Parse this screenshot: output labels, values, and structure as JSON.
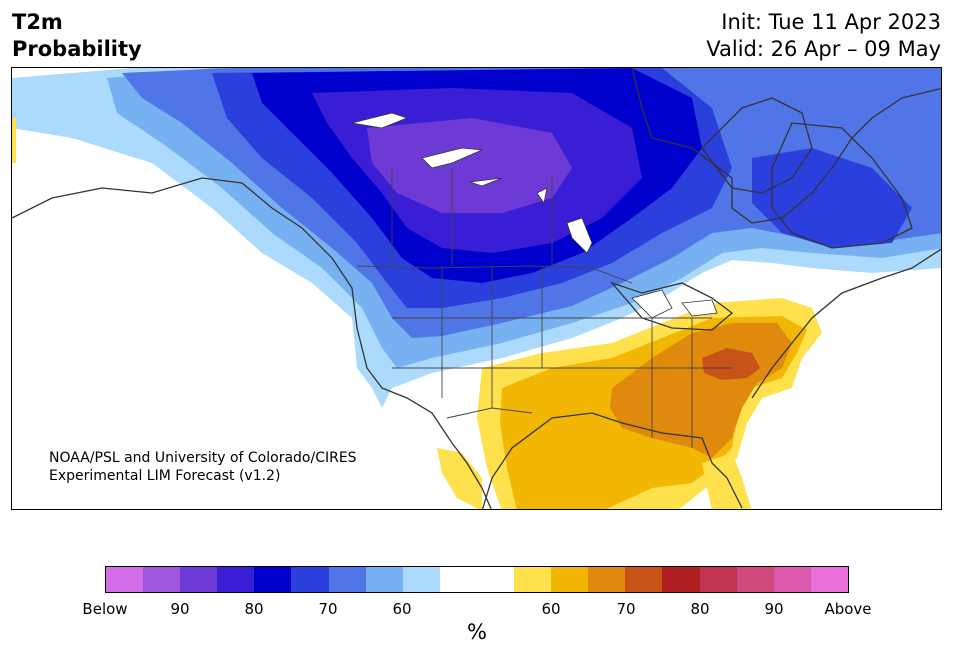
{
  "header": {
    "title_line1": "T2m",
    "title_line2": "Probability",
    "init_text": "Init: Tue 11 Apr 2023",
    "valid_text": "Valid: 26 Apr – 09 May"
  },
  "credit": {
    "line1": "NOAA/PSL and University of Colorado/CIRES",
    "line2": "Experimental LIM Forecast (v1.2)"
  },
  "colorbar": {
    "unit": "%",
    "colors": [
      "#d36ee8",
      "#9e55e0",
      "#6e3ad6",
      "#3a1ed6",
      "#0000cd",
      "#2a3fdc",
      "#5075e6",
      "#78b1f2",
      "#acdafc",
      "#ffffff",
      "#ffffff",
      "#ffe14d",
      "#f2b705",
      "#df8a0c",
      "#c85318",
      "#b01f22",
      "#c23552",
      "#d04a7d",
      "#dd5bae",
      "#e870d8"
    ],
    "tick_labels": [
      "Below",
      "90",
      "80",
      "70",
      "60",
      "60",
      "70",
      "80",
      "90",
      "Above"
    ]
  },
  "map": {
    "cold_colors": {
      "p60": "#acdafc",
      "p65": "#78b1f2",
      "p70": "#5075e6",
      "p75": "#2a3fdc",
      "p80": "#0000cd",
      "p85": "#3a1ed6",
      "p90": "#6e3ad6"
    },
    "warm_colors": {
      "p60": "#ffe14d",
      "p65": "#f2b705",
      "p70": "#df8a0c",
      "p75": "#c85318"
    }
  }
}
